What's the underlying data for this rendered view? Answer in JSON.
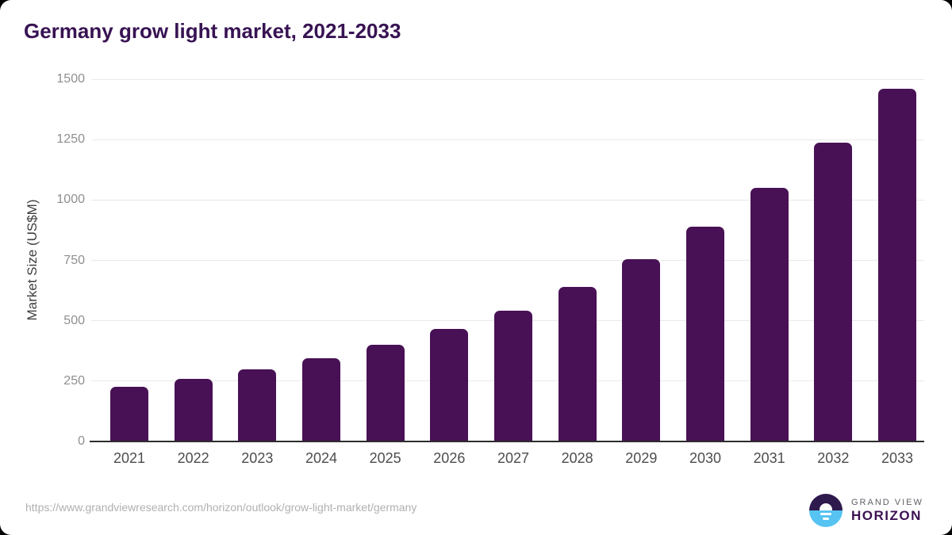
{
  "title": "Germany grow light market, 2021-2033",
  "chart_data": {
    "type": "bar",
    "title": "Germany grow light market, 2021-2033",
    "categories": [
      "2021",
      "2022",
      "2023",
      "2024",
      "2025",
      "2026",
      "2027",
      "2028",
      "2029",
      "2030",
      "2031",
      "2032",
      "2033"
    ],
    "values": [
      228,
      260,
      298,
      345,
      401,
      466,
      541,
      639,
      755,
      888,
      1049,
      1238,
      1460
    ],
    "xlabel": "",
    "ylabel": "Market Size (US$M)",
    "ylim": [
      0,
      1500
    ],
    "yticks": [
      0,
      250,
      500,
      750,
      1000,
      1250,
      1500
    ],
    "grid": true,
    "legend": false,
    "bar_color": "#481155"
  },
  "colors": {
    "title": "#381353",
    "bar": "#481155",
    "gridline": "#e9e9e9",
    "axis_line": "#2d2d2d",
    "y_tick": "#8f8f8f",
    "x_tick": "#4d4d4d",
    "url_text": "#b0b0b0",
    "logo_dark_purple": "#2e1a4d",
    "logo_light_blue": "#56c3f2"
  },
  "footer": {
    "source_url": "https://www.grandviewresearch.com/horizon/outlook/grow-light-market/germany",
    "logo": {
      "top": "GRAND VIEW",
      "bottom": "HORIZON"
    }
  }
}
